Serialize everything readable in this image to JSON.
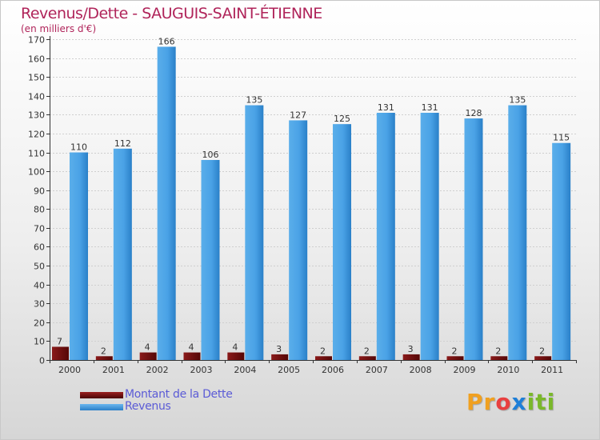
{
  "title": "Revenus/Dette - SAUGUIS-SAINT-ÉTIENNE",
  "subtitle": "(en milliers d'€)",
  "legend": [
    {
      "label": "Montant de la Dette",
      "color": "#6e0b0b"
    },
    {
      "label": "Revenus",
      "color": "#3d98e0"
    }
  ],
  "logo": {
    "letters": [
      "P",
      "r",
      "o",
      "x",
      "i",
      "t",
      "i"
    ],
    "colors": [
      "#f0a020",
      "#f0a020",
      "#e84040",
      "#1e7fd8",
      "#7ab82a",
      "#7ab82a",
      "#7ab82a"
    ]
  },
  "chart_data": {
    "type": "bar",
    "title": "Revenus/Dette - SAUGUIS-SAINT-ÉTIENNE",
    "ylabel": "(en milliers d'€)",
    "xlabel": "",
    "ylim": [
      0,
      170
    ],
    "yticks": [
      0,
      10,
      20,
      30,
      40,
      50,
      60,
      70,
      80,
      90,
      100,
      110,
      120,
      130,
      140,
      150,
      160,
      170
    ],
    "grid": true,
    "categories": [
      "2000",
      "2001",
      "2002",
      "2003",
      "2004",
      "2005",
      "2006",
      "2007",
      "2008",
      "2009",
      "2010",
      "2011"
    ],
    "series": [
      {
        "name": "Montant de la Dette",
        "color": "#6e0b0b",
        "values": [
          7,
          2,
          4,
          4,
          4,
          3,
          2,
          2,
          3,
          2,
          2,
          2
        ]
      },
      {
        "name": "Revenus",
        "color": "#3d98e0",
        "values": [
          110,
          112,
          166,
          106,
          135,
          127,
          125,
          131,
          131,
          128,
          135,
          115
        ]
      }
    ]
  }
}
